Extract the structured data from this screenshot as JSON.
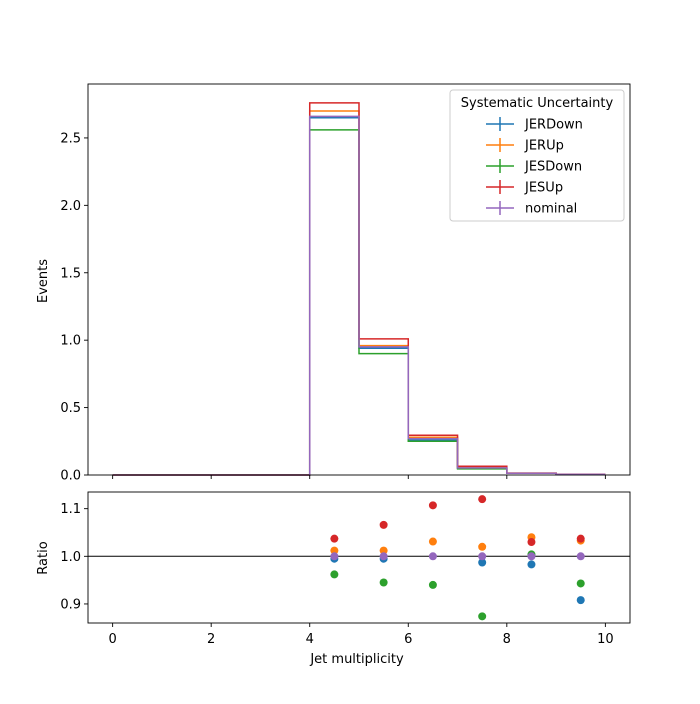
{
  "chart_data": [
    {
      "type": "line",
      "panel": "main",
      "ylabel": "Events",
      "xlim": [
        -0.5,
        10.5
      ],
      "ylim": [
        0,
        2.9
      ],
      "x_ticks": [
        "",
        "",
        "",
        "",
        "",
        ""
      ],
      "y_ticks": [
        "0.0",
        "0.5",
        "1.0",
        "1.5",
        "2.0",
        "2.5"
      ],
      "bin_edges": [
        0,
        1,
        2,
        3,
        4,
        5,
        6,
        7,
        8,
        9,
        10
      ],
      "legend_title": "Systematic Uncertainty",
      "legend_position": "top-right",
      "series": [
        {
          "name": "JERDown",
          "color": "#1f77b4",
          "values": [
            0,
            0,
            0,
            0,
            2.65,
            0.94,
            0.26,
            0.05,
            0.013,
            0.005
          ]
        },
        {
          "name": "JERUp",
          "color": "#ff7f0e",
          "values": [
            0,
            0,
            0,
            0,
            2.7,
            0.96,
            0.28,
            0.055,
            0.014,
            0.006
          ]
        },
        {
          "name": "JESDown",
          "color": "#2ca02c",
          "values": [
            0,
            0,
            0,
            0,
            2.56,
            0.9,
            0.25,
            0.045,
            0.013,
            0.005
          ]
        },
        {
          "name": "JESUp",
          "color": "#d62728",
          "values": [
            0,
            0,
            0,
            0,
            2.76,
            1.01,
            0.295,
            0.065,
            0.014,
            0.006
          ]
        },
        {
          "name": "nominal",
          "color": "#9467bd",
          "values": [
            0,
            0,
            0,
            0,
            2.66,
            0.95,
            0.27,
            0.053,
            0.013,
            0.005
          ]
        }
      ]
    },
    {
      "type": "scatter",
      "panel": "ratio",
      "xlabel": "Jet multiplicity",
      "ylabel": "Ratio",
      "xlim": [
        -0.5,
        10.5
      ],
      "ylim": [
        0.86,
        1.135
      ],
      "x_ticks": [
        "0",
        "2",
        "4",
        "6",
        "8",
        "10"
      ],
      "y_ticks": [
        "0.9",
        "1.0",
        "1.1"
      ],
      "reference_line": 1.0,
      "x": [
        4.5,
        5.5,
        6.5,
        7.5,
        8.5,
        9.5
      ],
      "series": [
        {
          "name": "JERDown",
          "color": "#1f77b4",
          "values": [
            0.995,
            0.995,
            null,
            0.987,
            0.983,
            0.908
          ]
        },
        {
          "name": "JERUp",
          "color": "#ff7f0e",
          "values": [
            1.012,
            1.012,
            1.031,
            1.02,
            1.04,
            1.033
          ]
        },
        {
          "name": "JESDown",
          "color": "#2ca02c",
          "values": [
            0.962,
            0.945,
            0.94,
            0.874,
            1.004,
            0.943
          ]
        },
        {
          "name": "JESUp",
          "color": "#d62728",
          "values": [
            1.037,
            1.066,
            1.107,
            1.12,
            1.03,
            1.037
          ]
        },
        {
          "name": "nominal",
          "color": "#9467bd",
          "values": [
            1.0,
            1.0,
            1.0,
            1.0,
            1.0,
            1.0
          ]
        }
      ]
    }
  ]
}
